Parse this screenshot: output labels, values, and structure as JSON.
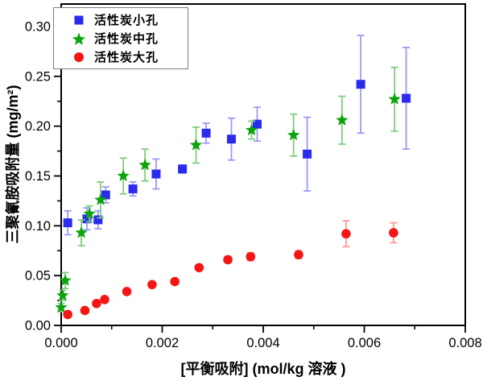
{
  "chart_data": {
    "type": "scatter",
    "title": "",
    "xlabel": "[平衡吸附] (mol/kg 溶液 )",
    "ylabel": "三聚氰胺吸附量 (mg/m²)",
    "xlim": [
      0,
      0.008
    ],
    "ylim": [
      0,
      0.3226
    ],
    "grid": false,
    "legend_position": "top-left",
    "frame_color": "#000000",
    "x_axis": {
      "major_ticks": [
        0,
        0.002,
        0.004,
        0.006,
        0.008
      ],
      "tick_labels": [
        "0.000",
        "0.002",
        "0.004",
        "0.006",
        "0.008"
      ],
      "minor_ticks": [
        0.001,
        0.003,
        0.005,
        0.007
      ]
    },
    "y_axis": {
      "major_ticks": [
        0,
        0.05,
        0.1,
        0.15,
        0.2,
        0.25,
        0.3
      ],
      "tick_labels": [
        "0.00",
        "0.05",
        "0.10",
        "0.15",
        "0.20",
        "0.25",
        "0.30"
      ],
      "minor_ticks": [
        0.025,
        0.075,
        0.125,
        0.175,
        0.225,
        0.275
      ]
    },
    "series": [
      {
        "name": "活性炭小孔",
        "marker": "square",
        "color": "#2B2BEE",
        "error_color": "#9A9AF5",
        "points": [
          {
            "x": 0.00013,
            "y": 0.103,
            "e": 0.012
          },
          {
            "x": 0.00051,
            "y": 0.107,
            "e": 0.011
          },
          {
            "x": 0.00073,
            "y": 0.106,
            "e": 0.009
          },
          {
            "x": 0.00088,
            "y": 0.131,
            "e": 0.008
          },
          {
            "x": 0.00142,
            "y": 0.137,
            "e": 0.007
          },
          {
            "x": 0.00188,
            "y": 0.152,
            "e": 0.015
          },
          {
            "x": 0.0024,
            "y": 0.157,
            "e": 0.004
          },
          {
            "x": 0.00287,
            "y": 0.193,
            "e": 0.01
          },
          {
            "x": 0.00337,
            "y": 0.187,
            "e": 0.021
          },
          {
            "x": 0.00388,
            "y": 0.202,
            "e": 0.017
          },
          {
            "x": 0.00487,
            "y": 0.172,
            "e": 0.037
          },
          {
            "x": 0.00593,
            "y": 0.242,
            "e": 0.049
          },
          {
            "x": 0.00683,
            "y": 0.228,
            "e": 0.051
          }
        ]
      },
      {
        "name": "活性炭中孔",
        "marker": "star",
        "color": "#0CA30C",
        "error_color": "#7FCE7F",
        "points": [
          {
            "x": 0.0,
            "y": 0.018,
            "e": 0.004
          },
          {
            "x": 3e-05,
            "y": 0.03,
            "e": 0.005
          },
          {
            "x": 8e-05,
            "y": 0.045,
            "e": 0.008
          },
          {
            "x": 0.0004,
            "y": 0.093,
            "e": 0.013
          },
          {
            "x": 0.00056,
            "y": 0.112,
            "e": 0.008
          },
          {
            "x": 0.00078,
            "y": 0.126,
            "e": 0.018
          },
          {
            "x": 0.00123,
            "y": 0.15,
            "e": 0.018
          },
          {
            "x": 0.00166,
            "y": 0.161,
            "e": 0.016
          },
          {
            "x": 0.00267,
            "y": 0.181,
            "e": 0.018
          },
          {
            "x": 0.00377,
            "y": 0.196,
            "e": 0.009
          },
          {
            "x": 0.0046,
            "y": 0.191,
            "e": 0.021
          },
          {
            "x": 0.00556,
            "y": 0.206,
            "e": 0.024
          },
          {
            "x": 0.0066,
            "y": 0.227,
            "e": 0.032
          }
        ]
      },
      {
        "name": "活性炭大孔",
        "marker": "circle",
        "color": "#F51515",
        "error_color": "#FF9A9A",
        "points": [
          {
            "x": 0.00013,
            "y": 0.011,
            "e": 0.003
          },
          {
            "x": 0.00047,
            "y": 0.015,
            "e": 0.002
          },
          {
            "x": 0.0007,
            "y": 0.022,
            "e": 0.002
          },
          {
            "x": 0.00086,
            "y": 0.026,
            "e": 0.002
          },
          {
            "x": 0.0013,
            "y": 0.034,
            "e": 0.002
          },
          {
            "x": 0.0018,
            "y": 0.041,
            "e": 0.002
          },
          {
            "x": 0.00225,
            "y": 0.044,
            "e": 0.002
          },
          {
            "x": 0.00273,
            "y": 0.058,
            "e": 0.002
          },
          {
            "x": 0.0033,
            "y": 0.066,
            "e": 0.003
          },
          {
            "x": 0.00375,
            "y": 0.069,
            "e": 0.004
          },
          {
            "x": 0.0047,
            "y": 0.071,
            "e": 0.004
          },
          {
            "x": 0.00564,
            "y": 0.092,
            "e": 0.013
          },
          {
            "x": 0.00658,
            "y": 0.093,
            "e": 0.01
          }
        ]
      }
    ]
  }
}
